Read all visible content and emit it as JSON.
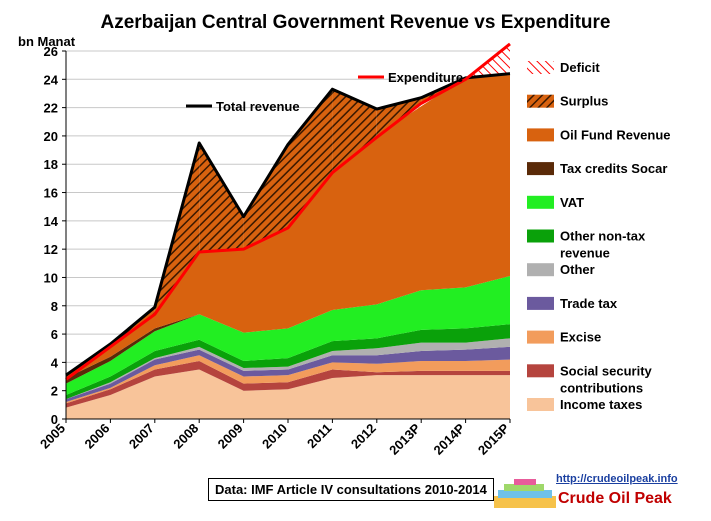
{
  "chart_data": {
    "type": "area",
    "title": "Azerbaijan  Central Government  Revenue vs Expenditure",
    "ylabel": "bn Manat",
    "ylim": [
      0,
      26
    ],
    "yticks": [
      0,
      2,
      4,
      6,
      8,
      10,
      12,
      14,
      16,
      18,
      20,
      22,
      24,
      26
    ],
    "grid": true,
    "categories": [
      "2005",
      "2006",
      "2007",
      "2008",
      "2009",
      "2010",
      "2011",
      "2012",
      "2013P",
      "2014P",
      "2015P"
    ],
    "stacked_series": [
      {
        "name": "Income taxes",
        "color": "#f8c49a",
        "values": [
          0.8,
          1.7,
          3.0,
          3.5,
          2.0,
          2.1,
          2.9,
          3.1,
          3.1,
          3.1,
          3.1
        ]
      },
      {
        "name": "Social security contributions",
        "color": "#b5443e",
        "values": [
          0.3,
          0.4,
          0.5,
          0.6,
          0.5,
          0.5,
          0.6,
          0.2,
          0.3,
          0.3,
          0.3
        ]
      },
      {
        "name": "Excise",
        "color": "#f29c5c",
        "values": [
          0.1,
          0.1,
          0.3,
          0.4,
          0.5,
          0.5,
          0.5,
          0.6,
          0.7,
          0.7,
          0.8
        ]
      },
      {
        "name": "Trade tax",
        "color": "#6b5a9e",
        "values": [
          0.2,
          0.3,
          0.4,
          0.4,
          0.4,
          0.4,
          0.5,
          0.6,
          0.7,
          0.8,
          0.9
        ]
      },
      {
        "name": "Other",
        "color": "#b0b0b0",
        "values": [
          0.0,
          0.1,
          0.1,
          0.2,
          0.2,
          0.2,
          0.3,
          0.5,
          0.6,
          0.5,
          0.6
        ]
      },
      {
        "name": "Other non-tax revenue",
        "color": "#0aa10a",
        "values": [
          0.3,
          0.4,
          0.5,
          0.5,
          0.5,
          0.6,
          0.7,
          0.7,
          0.9,
          1.0,
          1.0
        ]
      },
      {
        "name": "VAT",
        "color": "#22ee22",
        "values": [
          0.8,
          1.1,
          1.4,
          1.8,
          2.0,
          2.1,
          2.2,
          2.4,
          2.8,
          2.9,
          3.4
        ]
      },
      {
        "name": "Tax credits Socar",
        "color": "#5a2a08",
        "values": [
          0.4,
          0.3,
          0.2,
          0.0,
          0.0,
          0.0,
          0.0,
          0.0,
          0.0,
          0.0,
          0.0
        ]
      },
      {
        "name": "Oil Fund Revenue",
        "color": "#d8620f",
        "values": [
          0.2,
          0.6,
          1.2,
          4.4,
          5.9,
          7.2,
          9.7,
          11.9,
          13.0,
          14.8,
          14.2
        ]
      }
    ],
    "expenditure": {
      "name": "Expenditure",
      "color": "#ff0000",
      "values": [
        2.8,
        5.1,
        7.4,
        11.8,
        12.0,
        13.5,
        17.4,
        19.9,
        22.3,
        24.0,
        26.5
      ]
    },
    "total_revenue": {
      "name": "Total revenue",
      "color": "#000000",
      "values": [
        3.1,
        5.3,
        7.9,
        19.5,
        14.3,
        19.4,
        23.3,
        21.9,
        22.7,
        24.1,
        24.4
      ]
    },
    "legend": [
      "Deficit",
      "Surplus",
      "Oil Fund Revenue",
      "Tax credits Socar",
      "VAT",
      "Other non-tax revenue",
      "Other",
      "Trade tax",
      "Excise",
      "Social security contributions",
      "Income taxes"
    ],
    "legend_placement": "right"
  },
  "labels": {
    "title": "Azerbaijan  Central Government  Revenue vs Expenditure",
    "unit": "bn Manat",
    "source": "Data: IMF Article IV consultations 2010-2014",
    "brand_url": "http://crudeoilpeak.info",
    "brand_name": "Crude Oil Peak",
    "legend_items": [
      {
        "key": "deficit",
        "text": "Deficit",
        "text2": "",
        "swatch": "deficit"
      },
      {
        "key": "surplus",
        "text": "Surplus",
        "text2": "",
        "swatch": "surplus"
      },
      {
        "key": "oil-fund",
        "text": "Oil Fund Revenue",
        "text2": "",
        "swatch": "#d8620f"
      },
      {
        "key": "tax-credits",
        "text": "Tax credits Socar",
        "text2": "",
        "swatch": "#5a2a08"
      },
      {
        "key": "vat",
        "text": "VAT",
        "text2": "",
        "swatch": "#22ee22"
      },
      {
        "key": "other-nontax",
        "text": "Other non-tax",
        "text2": "revenue",
        "swatch": "#0aa10a"
      },
      {
        "key": "other",
        "text": "Other",
        "text2": "",
        "swatch": "#b0b0b0"
      },
      {
        "key": "trade-tax",
        "text": "Trade tax",
        "text2": "",
        "swatch": "#6b5a9e"
      },
      {
        "key": "excise",
        "text": "Excise",
        "text2": "",
        "swatch": "#f29c5c"
      },
      {
        "key": "social-security",
        "text": "Social security",
        "text2": "contributions",
        "swatch": "#b5443e"
      },
      {
        "key": "income-taxes",
        "text": "Income taxes",
        "text2": "",
        "swatch": "#f8c49a"
      }
    ],
    "line_legend": [
      {
        "key": "expenditure",
        "text": "Expenditure",
        "color": "#ff0000"
      },
      {
        "key": "total-revenue",
        "text": "Total revenue",
        "color": "#000000"
      }
    ]
  }
}
